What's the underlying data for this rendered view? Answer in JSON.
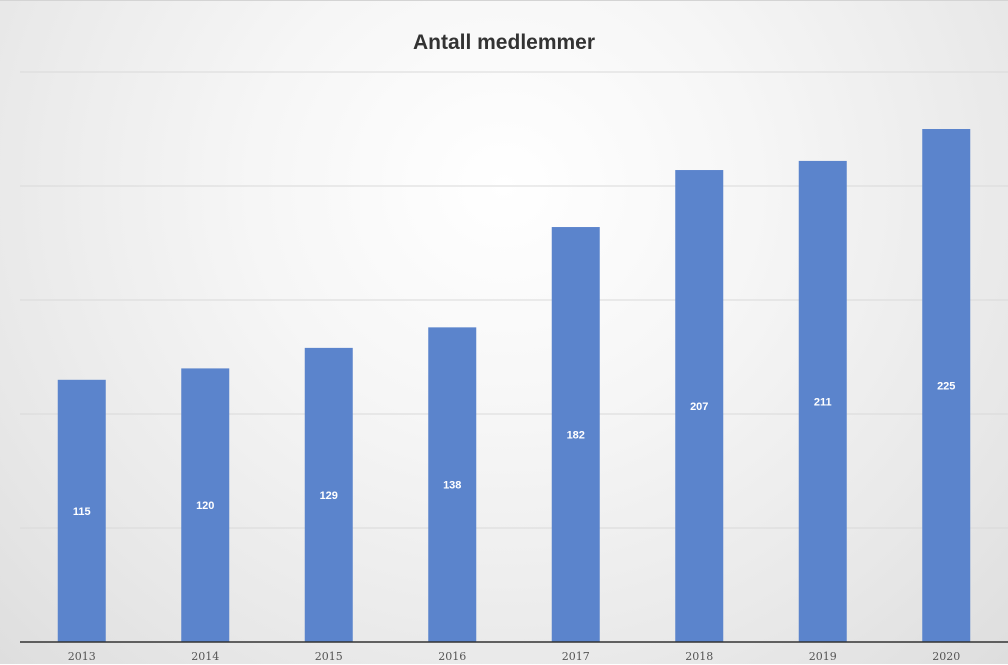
{
  "chart_data": {
    "type": "bar",
    "title": "Antall medlemmer",
    "categories": [
      "2013",
      "2014",
      "2015",
      "2016",
      "2017",
      "2018",
      "2019",
      "2020"
    ],
    "values": [
      115,
      120,
      129,
      138,
      182,
      207,
      211,
      225
    ],
    "xlabel": "",
    "ylabel": "",
    "ylim": [
      0,
      250
    ],
    "grid": true,
    "legend": "none",
    "bar_color": "#5b84cc",
    "label_color": "#ffffff",
    "gridline_color": "#d9d9d9",
    "axis_color": "#333333"
  }
}
